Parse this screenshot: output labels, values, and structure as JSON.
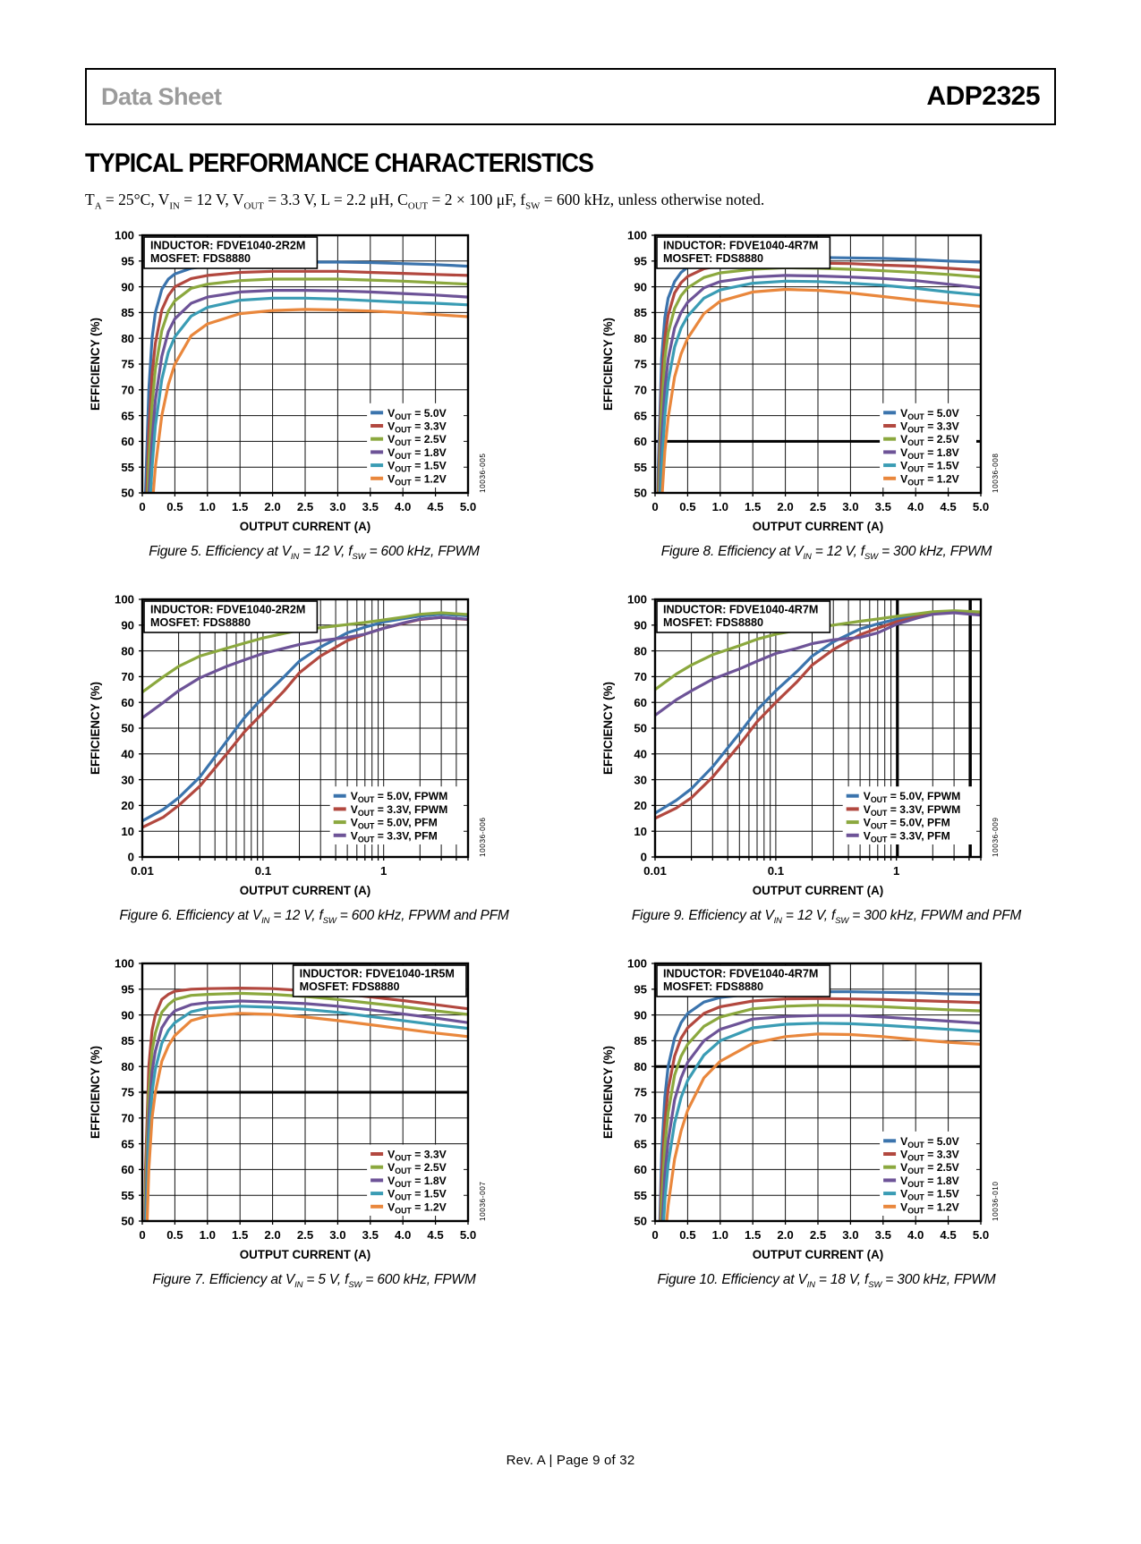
{
  "header": {
    "doc_type": "Data Sheet",
    "part_number": "ADP2325"
  },
  "section_title": "TYPICAL PERFORMANCE CHARACTERISTICS",
  "conditions": "T~A~ = 25°C, V~IN~ = 12 V, V~OUT~ = 3.3 V, L = 2.2 μH, C~OUT~ = 2 × 100 μF, f~SW~ = 600 kHz, unless otherwise noted.",
  "footer": {
    "text": "Rev. A | Page 9 of 32"
  },
  "palette": {
    "blue": "#3b74ad",
    "red": "#b2483f",
    "green": "#8ba83e",
    "purple": "#6d5397",
    "teal": "#3a9cb4",
    "orange": "#e9873c"
  },
  "chart_data": [
    {
      "id": "figure-5",
      "type": "line",
      "caption": "Figure 5. Efficiency at V~IN~ = 12 V, f~SW~ = 600 kHz, FPWM",
      "code": "10036-005",
      "annotation": [
        "INDUCTOR: FDVE1040-2R2M",
        "MOSFET: FDS8880"
      ],
      "annotation_pos": "top-left",
      "xlabel": "OUTPUT CURRENT (A)",
      "ylabel": "EFFICIENCY (%)",
      "x_scale": "linear",
      "xlim": [
        0,
        5
      ],
      "x_tick_step": 0.5,
      "ylim": [
        50,
        100
      ],
      "y_tick_step": 5,
      "legend_pos": "bottom-right",
      "thick_gridlines": [],
      "x": [
        0.02,
        0.05,
        0.1,
        0.15,
        0.2,
        0.3,
        0.4,
        0.5,
        0.75,
        1,
        1.5,
        2,
        2.5,
        3,
        3.5,
        4,
        4.5,
        5
      ],
      "series": [
        {
          "name": "V~OUT~ = 5.0V",
          "color": "blue",
          "y": [
            20,
            50,
            70,
            80,
            85,
            89.5,
            91.5,
            92.5,
            93.6,
            94,
            94.5,
            94.7,
            94.8,
            94.8,
            94.7,
            94.5,
            94.3,
            94
          ]
        },
        {
          "name": "V~OUT~ = 3.3V",
          "color": "red",
          "y": [
            15,
            42,
            62,
            73,
            79,
            85.5,
            88.3,
            90,
            91.6,
            92.2,
            92.8,
            93,
            93,
            93,
            92.8,
            92.6,
            92.4,
            92.2
          ]
        },
        {
          "name": "V~OUT~ = 2.5V",
          "color": "green",
          "y": [
            12,
            36,
            56,
            67,
            74,
            81.5,
            85.3,
            87.3,
            89.7,
            90.5,
            91.2,
            91.5,
            91.5,
            91.5,
            91.3,
            91.1,
            90.8,
            90.5
          ]
        },
        {
          "name": "V~OUT~ = 1.8V",
          "color": "purple",
          "y": [
            10,
            30,
            49,
            60,
            68,
            76.5,
            81.3,
            83.8,
            86.8,
            88,
            89,
            89.3,
            89.3,
            89.2,
            89,
            88.7,
            88.4,
            88
          ]
        },
        {
          "name": "V~OUT~ = 1.5V",
          "color": "teal",
          "y": [
            8,
            26,
            44,
            55,
            63,
            72,
            77.3,
            80.3,
            84.3,
            86,
            87.4,
            87.8,
            87.8,
            87.6,
            87.3,
            87,
            86.8,
            86.5
          ]
        },
        {
          "name": "V~OUT~ = 1.2V",
          "color": "orange",
          "y": [
            6,
            20,
            36,
            47,
            55,
            65,
            71,
            75,
            80.5,
            82.8,
            84.8,
            85.4,
            85.6,
            85.5,
            85.3,
            85,
            84.6,
            84.2
          ]
        }
      ]
    },
    {
      "id": "figure-8",
      "type": "line",
      "caption": "Figure 8. Efficiency at V~IN~ = 12 V, f~SW~ = 300 kHz, FPWM",
      "code": "10036-008",
      "annotation": [
        "INDUCTOR: FDVE1040-4R7M",
        "MOSFET: FDS8880"
      ],
      "annotation_pos": "top-left",
      "xlabel": "OUTPUT CURRENT (A)",
      "ylabel": "EFFICIENCY (%)",
      "x_scale": "linear",
      "xlim": [
        0,
        5
      ],
      "x_tick_step": 0.5,
      "ylim": [
        50,
        100
      ],
      "y_tick_step": 5,
      "legend_pos": "bottom-right",
      "thick_gridlines": [
        {
          "axis": "y",
          "value": 60
        }
      ],
      "x": [
        0.02,
        0.05,
        0.1,
        0.15,
        0.2,
        0.3,
        0.4,
        0.5,
        0.75,
        1,
        1.5,
        2,
        2.5,
        3,
        3.5,
        4,
        4.5,
        5
      ],
      "series": [
        {
          "name": "V~OUT~ = 5.0V",
          "color": "blue",
          "y": [
            25,
            55,
            76,
            84,
            87.8,
            91,
            92.8,
            93.8,
            94.8,
            95.2,
            95.5,
            95.7,
            95.7,
            95.6,
            95.5,
            95.3,
            95,
            94.8
          ]
        },
        {
          "name": "V~OUT~ = 3.3V",
          "color": "red",
          "y": [
            22,
            50,
            71,
            80,
            84.5,
            88.8,
            90.8,
            92,
            93.5,
            94.1,
            94.5,
            94.7,
            94.6,
            94.5,
            94.2,
            94,
            93.6,
            93.2
          ]
        },
        {
          "name": "V~OUT~ = 2.5V",
          "color": "green",
          "y": [
            20,
            46,
            66,
            76,
            81,
            85.8,
            88.3,
            89.8,
            91.8,
            92.7,
            93.4,
            93.7,
            93.6,
            93.4,
            93.1,
            92.8,
            92.4,
            91.9
          ]
        },
        {
          "name": "V~OUT~ = 1.8V",
          "color": "purple",
          "y": [
            17,
            40,
            60,
            70,
            76,
            82,
            85,
            87,
            89.8,
            91,
            91.9,
            92.2,
            92.1,
            91.9,
            91.6,
            91.2,
            90.5,
            89.8
          ]
        },
        {
          "name": "V~OUT~ = 1.5V",
          "color": "teal",
          "y": [
            15,
            36,
            55,
            65,
            71.5,
            78.3,
            82,
            84.3,
            87.8,
            89.4,
            90.7,
            91.1,
            91,
            90.7,
            90.3,
            89.7,
            89,
            88.4
          ]
        },
        {
          "name": "V~OUT~ = 1.2V",
          "color": "orange",
          "y": [
            12,
            30,
            48,
            58,
            64.5,
            72.5,
            77,
            80,
            84.8,
            87.2,
            89,
            89.5,
            89.3,
            88.8,
            88.1,
            87.4,
            86.8,
            86.2
          ]
        }
      ]
    },
    {
      "id": "figure-6",
      "type": "line",
      "caption": "Figure 6. Efficiency at V~IN~ = 12 V, f~SW~ = 600 kHz, FPWM and PFM",
      "code": "10036-006",
      "annotation": [
        "INDUCTOR: FDVE1040-2R2M",
        "MOSFET: FDS8880"
      ],
      "annotation_pos": "top-left",
      "xlabel": "OUTPUT CURRENT (A)",
      "ylabel": "EFFICIENCY (%)",
      "x_scale": "log",
      "xlim": [
        0.01,
        5
      ],
      "ylim": [
        0,
        100
      ],
      "y_tick_step": 10,
      "legend_pos": "bottom-right",
      "thick_gridlines": [],
      "x": [
        0.01,
        0.015,
        0.02,
        0.03,
        0.05,
        0.07,
        0.1,
        0.15,
        0.2,
        0.3,
        0.5,
        0.7,
        1,
        1.5,
        2,
        3,
        5
      ],
      "series": [
        {
          "name": "V~OUT~ = 5.0V, FPWM",
          "color": "blue",
          "y": [
            14,
            18.5,
            23,
            31,
            45,
            54,
            62,
            70,
            76,
            81.5,
            87,
            89.2,
            91.2,
            92.6,
            93.5,
            94.2,
            93.6
          ]
        },
        {
          "name": "V~OUT~ = 3.3V, FPWM",
          "color": "red",
          "y": [
            11.5,
            15.5,
            20,
            27.5,
            40,
            48.5,
            56,
            64.5,
            71.5,
            78,
            84,
            86.5,
            88.8,
            90.8,
            92.2,
            93,
            92.2
          ]
        },
        {
          "name": "V~OUT~ = 5.0V, PFM",
          "color": "green",
          "y": [
            64,
            70,
            74,
            78,
            81,
            83,
            85,
            86.8,
            88,
            89,
            90.2,
            91,
            92,
            93.2,
            94.2,
            94.8,
            94.1
          ]
        },
        {
          "name": "V~OUT~ = 3.3V, PFM",
          "color": "purple",
          "y": [
            54,
            60,
            64.5,
            69.5,
            74,
            76.5,
            79,
            81,
            82.5,
            84,
            85.2,
            86.5,
            88.8,
            91,
            92.3,
            93,
            92.3
          ]
        }
      ]
    },
    {
      "id": "figure-9",
      "type": "line",
      "caption": "Figure 9. Efficiency at V~IN~ = 12 V, f~SW~ = 300 kHz, FPWM and PFM",
      "code": "10036-009",
      "annotation": [
        "INDUCTOR: FDVE1040-4R7M",
        "MOSFET: FDS8880"
      ],
      "annotation_pos": "top-left",
      "xlabel": "OUTPUT CURRENT (A)",
      "ylabel": "EFFICIENCY (%)",
      "x_scale": "log",
      "xlim": [
        0.01,
        5
      ],
      "ylim": [
        0,
        100
      ],
      "y_tick_step": 10,
      "legend_pos": "bottom-right",
      "thick_gridlines": [
        {
          "axis": "x",
          "value": 1.02
        },
        {
          "axis": "x",
          "value": 4.1
        }
      ],
      "x": [
        0.01,
        0.015,
        0.02,
        0.03,
        0.05,
        0.07,
        0.1,
        0.15,
        0.2,
        0.3,
        0.5,
        0.7,
        1,
        1.5,
        2,
        3,
        5
      ],
      "series": [
        {
          "name": "V~OUT~ = 5.0V, FPWM",
          "color": "blue",
          "y": [
            17,
            22,
            26.5,
            35,
            48,
            57,
            64.5,
            72,
            78,
            83.5,
            88.5,
            90.5,
            92.3,
            93.8,
            94.8,
            95.3,
            95
          ]
        },
        {
          "name": "V~OUT~ = 3.3V, FPWM",
          "color": "red",
          "y": [
            15,
            19,
            23,
            31,
            43.5,
            52.5,
            60,
            68,
            74.5,
            80.5,
            86.3,
            88.8,
            91.3,
            93.2,
            94.5,
            95.1,
            94.8
          ]
        },
        {
          "name": "V~OUT~ = 5.0V, PFM",
          "color": "green",
          "y": [
            65,
            71,
            74.5,
            78.5,
            82,
            84.5,
            86.5,
            88,
            89,
            90,
            91.5,
            92.4,
            93.4,
            94.4,
            95.2,
            95.6,
            95.1
          ]
        },
        {
          "name": "V~OUT~ = 3.3V, PFM",
          "color": "purple",
          "y": [
            55,
            61,
            64.5,
            69,
            73,
            76,
            79,
            81,
            82.8,
            84.3,
            85.2,
            87,
            90.3,
            92.8,
            94.2,
            94.8,
            93.9
          ]
        }
      ]
    },
    {
      "id": "figure-7",
      "type": "line",
      "caption": "Figure 7. Efficiency at V~IN~ = 5 V, f~SW~ = 600 kHz, FPWM",
      "code": "10036-007",
      "annotation": [
        "INDUCTOR: FDVE1040-1R5M",
        "MOSFET: FDS8880"
      ],
      "annotation_pos": "top-right",
      "xlabel": "OUTPUT CURRENT (A)",
      "ylabel": "EFFICIENCY (%)",
      "x_scale": "linear",
      "xlim": [
        0,
        5
      ],
      "x_tick_step": 0.5,
      "ylim": [
        50,
        100
      ],
      "y_tick_step": 5,
      "legend_pos": "bottom-right",
      "thick_gridlines": [
        {
          "axis": "y",
          "value": 75
        }
      ],
      "x": [
        0.02,
        0.05,
        0.1,
        0.15,
        0.2,
        0.3,
        0.4,
        0.5,
        0.75,
        1,
        1.5,
        2,
        2.5,
        3,
        3.5,
        4,
        4.5,
        5
      ],
      "series": [
        {
          "name": "V~OUT~ = 3.3V",
          "color": "red",
          "y": [
            25,
            60,
            80,
            87,
            90,
            93,
            94,
            94.6,
            95,
            95.1,
            95.2,
            95.1,
            94.7,
            94.2,
            93.5,
            92.8,
            92,
            91.2
          ]
        },
        {
          "name": "V~OUT~ = 2.5V",
          "color": "green",
          "y": [
            22,
            55,
            75,
            83,
            86.5,
            90.5,
            92,
            93,
            93.8,
            94,
            94.2,
            94,
            93.6,
            93,
            92.3,
            91.6,
            90.8,
            90.1
          ]
        },
        {
          "name": "V~OUT~ = 1.8V",
          "color": "purple",
          "y": [
            20,
            50,
            70,
            79,
            83,
            87.5,
            89.5,
            90.8,
            92,
            92.4,
            92.7,
            92.5,
            92.2,
            91.7,
            91,
            90.2,
            89.4,
            88.5
          ]
        },
        {
          "name": "V~OUT~ = 1.5V",
          "color": "teal",
          "y": [
            18,
            46,
            66,
            75,
            79.5,
            84.5,
            87,
            88.5,
            90.6,
            91.3,
            91.7,
            91.5,
            91.1,
            90.5,
            89.7,
            88.9,
            88.1,
            87.4
          ]
        },
        {
          "name": "V~OUT~ = 1.2V",
          "color": "orange",
          "y": [
            15,
            40,
            60,
            70,
            75,
            81,
            84,
            86,
            88.9,
            89.8,
            90.3,
            90.1,
            89.6,
            88.9,
            88.1,
            87.3,
            86.5,
            85.8
          ]
        }
      ]
    },
    {
      "id": "figure-10",
      "type": "line",
      "caption": "Figure 10. Efficiency at V~IN~ = 18 V, f~SW~ = 300 kHz, FPWM",
      "code": "10036-010",
      "annotation": [
        "INDUCTOR: FDVE1040-4R7M",
        "MOSFET: FDS8880"
      ],
      "annotation_pos": "top-left",
      "xlabel": "OUTPUT CURRENT (A)",
      "ylabel": "EFFICIENCY (%)",
      "x_scale": "linear",
      "xlim": [
        0,
        5
      ],
      "x_tick_step": 0.5,
      "ylim": [
        50,
        100
      ],
      "y_tick_step": 5,
      "legend_pos": "bottom-right",
      "thick_gridlines": [
        {
          "axis": "y",
          "value": 80
        }
      ],
      "x": [
        0.02,
        0.05,
        0.1,
        0.15,
        0.2,
        0.3,
        0.4,
        0.5,
        0.75,
        1,
        1.5,
        2,
        2.5,
        3,
        3.5,
        4,
        4.5,
        5
      ],
      "series": [
        {
          "name": "V~OUT~ = 5.0V",
          "color": "blue",
          "y": [
            15,
            38,
            63,
            74,
            80,
            85.5,
            88.5,
            90.3,
            92.5,
            93.4,
            94.1,
            94.4,
            94.5,
            94.5,
            94.4,
            94.3,
            94.1,
            94
          ]
        },
        {
          "name": "V~OUT~ = 3.3V",
          "color": "red",
          "y": [
            13,
            34,
            58,
            69,
            75.5,
            82,
            85.5,
            87.5,
            90.3,
            91.6,
            92.7,
            93.1,
            93.2,
            93.1,
            93,
            92.8,
            92.6,
            92.4
          ]
        },
        {
          "name": "V~OUT~ = 2.5V",
          "color": "green",
          "y": [
            12,
            30,
            53,
            64.5,
            71,
            78.3,
            82,
            84.3,
            87.8,
            89.6,
            91.2,
            91.7,
            91.9,
            91.8,
            91.6,
            91.3,
            91,
            90.8
          ]
        },
        {
          "name": "V~OUT~ = 1.8V",
          "color": "purple",
          "y": [
            10,
            26,
            47,
            59,
            65.5,
            73.5,
            77.8,
            80.8,
            85,
            87.2,
            89.2,
            89.7,
            89.9,
            89.9,
            89.6,
            89.2,
            88.8,
            88.4
          ]
        },
        {
          "name": "V~OUT~ = 1.5V",
          "color": "teal",
          "y": [
            9,
            23,
            43,
            54,
            61,
            69,
            74,
            77.3,
            82.2,
            85,
            87.5,
            88.2,
            88.4,
            88.3,
            88,
            87.6,
            87.2,
            86.8
          ]
        },
        {
          "name": "V~OUT~ = 1.2V",
          "color": "orange",
          "y": [
            7,
            18,
            35,
            46,
            53,
            62,
            67.5,
            71.5,
            77.8,
            81,
            84.5,
            85.8,
            86.3,
            86.2,
            85.8,
            85.2,
            84.7,
            84.3
          ]
        }
      ]
    }
  ]
}
